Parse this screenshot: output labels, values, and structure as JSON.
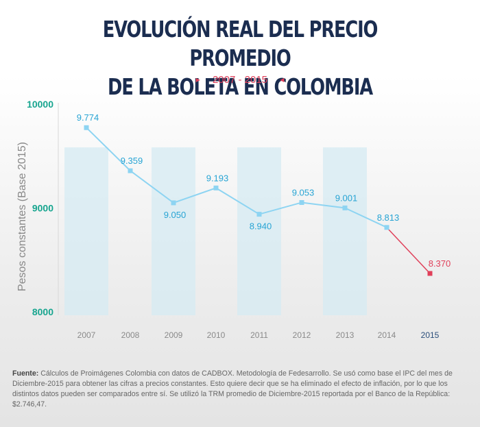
{
  "header": {
    "title_line1": "EVOLUCIÓN REAL DEL PRECIO PROMEDIO",
    "title_line2": "DE LA BOLETA EN COLOMBIA",
    "subtitle": "2007 - 2015"
  },
  "chart_data": {
    "type": "line",
    "title": "EVOLUCIÓN REAL DEL PRECIO PROMEDIO DE LA BOLETA EN COLOMBIA",
    "subtitle": "2007 - 2015",
    "ylabel": "Pesos constantes (Base 2015)",
    "xlabel": "",
    "ylim": [
      8000,
      10000
    ],
    "yticks": [
      "8000",
      "9000",
      "10000"
    ],
    "categories": [
      "2007",
      "2008",
      "2009",
      "2010",
      "2011",
      "2012",
      "2013",
      "2014",
      "2015"
    ],
    "values": [
      9774,
      9359,
      9050,
      9193,
      8940,
      9053,
      9001,
      8813,
      8370
    ],
    "data_labels": [
      "9.774",
      "9.359",
      "9.050",
      "9.193",
      "8.940",
      "9.053",
      "9.001",
      "8.813",
      "8.370"
    ],
    "colors": {
      "main": "#8dd4f2",
      "highlight": "#e0405a",
      "band": "#d6ebf3",
      "ytick": "#17a58f"
    }
  },
  "footer": {
    "label": "Fuente:",
    "text": "Cálculos de Proimágenes Colombia con datos de CADBOX. Metodología de Fedesarrollo. Se usó como base el IPC del mes de Diciembre-2015 para obtener las cifras a precios constantes. Esto quiere decir que se ha eliminado el efecto de inflación, por lo que los distintos datos pueden ser comparados entre sí. Se utilizó la TRM promedio de Diciembre-2015 reportada por el Banco de la República: $2.746,47."
  }
}
